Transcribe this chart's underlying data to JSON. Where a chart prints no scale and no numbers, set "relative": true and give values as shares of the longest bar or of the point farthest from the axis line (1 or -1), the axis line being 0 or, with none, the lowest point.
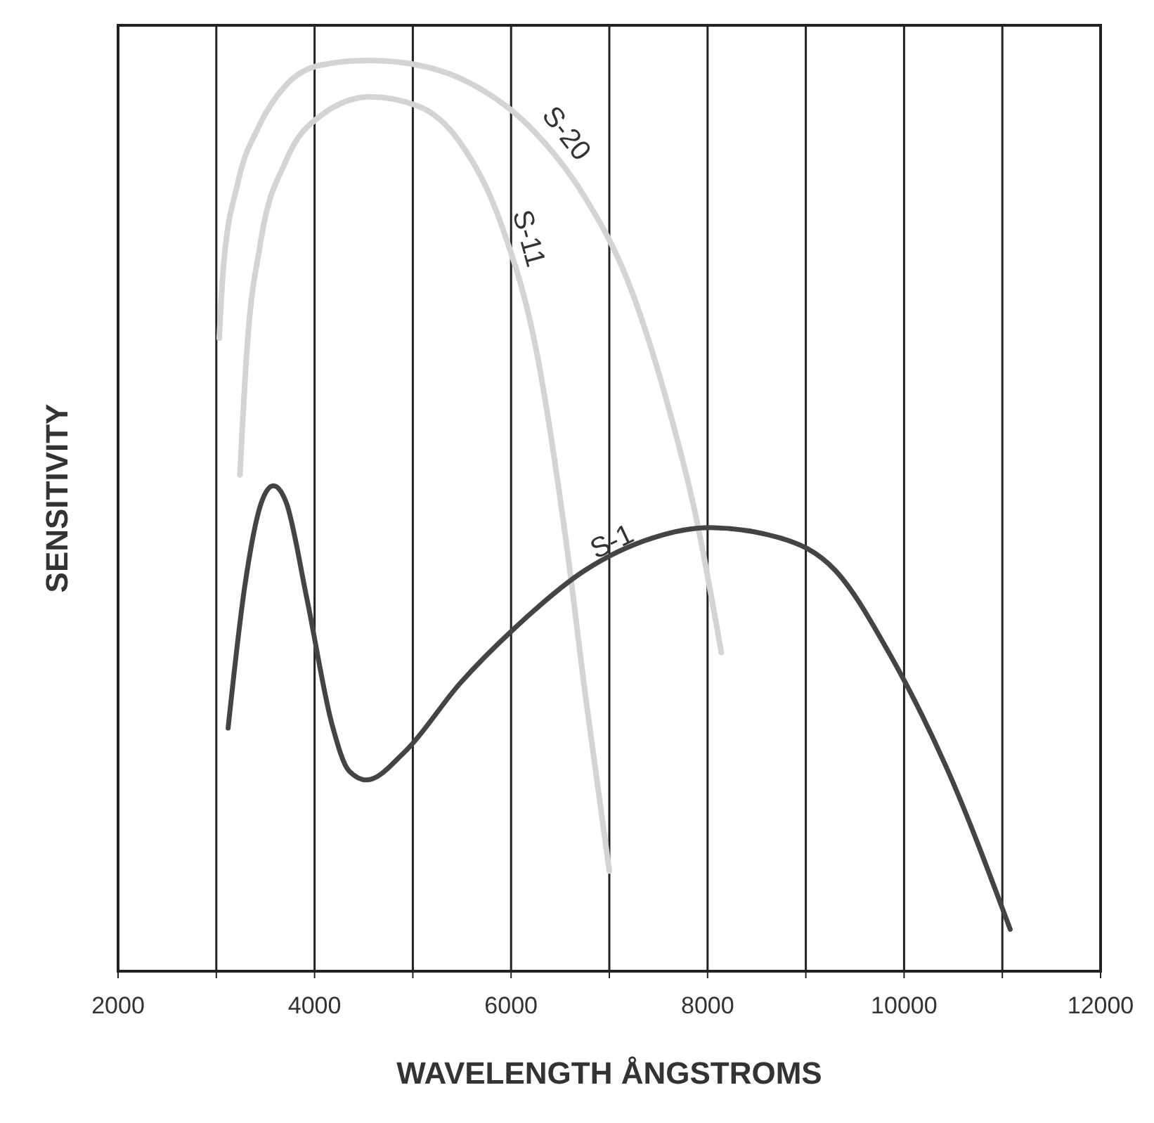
{
  "chart_data": {
    "type": "line",
    "xlabel": "WAVELENGTH ÅNGSTROMS",
    "ylabel": "SENSITIVITY",
    "relative": true,
    "xlim": [
      2000,
      12000
    ],
    "xticks": [
      2000,
      {
        "value": 3000,
        "label": null
      },
      4000,
      {
        "value": 5000,
        "label": null
      },
      6000,
      {
        "value": 7000,
        "label": null
      },
      8000,
      {
        "value": 9000,
        "label": null
      },
      10000,
      {
        "value": 11000,
        "label": null
      },
      12000
    ],
    "grid": "x",
    "legend": false,
    "line_style": "solid",
    "series": [
      {
        "name": "S-20",
        "color": "#d4d4d4",
        "x": [
          3030,
          3070,
          3220,
          3430,
          3710,
          4070,
          4560,
          5050,
          5620,
          6190,
          6750,
          7180,
          7600,
          7880,
          8140
        ],
        "values": [
          0.695,
          0.77,
          0.866,
          0.927,
          0.973,
          0.995,
          1.0,
          0.995,
          0.973,
          0.927,
          0.85,
          0.76,
          0.62,
          0.5,
          0.35
        ]
      },
      {
        "name": "S-11",
        "color": "#d4d4d4",
        "x": [
          3240,
          3310,
          3450,
          3710,
          4070,
          4560,
          5050,
          5480,
          5900,
          6260,
          6550,
          6760,
          7000
        ],
        "values": [
          0.545,
          0.68,
          0.8,
          0.89,
          0.94,
          0.96,
          0.95,
          0.91,
          0.82,
          0.68,
          0.48,
          0.3,
          0.11
        ]
      },
      {
        "name": "S-1",
        "color": "#444444",
        "x": [
          3120,
          3290,
          3460,
          3580,
          3710,
          3920,
          4180,
          4350,
          4530,
          4910,
          5480,
          6040,
          6750,
          7450,
          8020,
          8730,
          9300,
          9860,
          10430,
          11080
        ],
        "values": [
          0.267,
          0.423,
          0.515,
          0.533,
          0.515,
          0.41,
          0.27,
          0.22,
          0.21,
          0.24,
          0.316,
          0.377,
          0.44,
          0.476,
          0.487,
          0.476,
          0.44,
          0.347,
          0.224,
          0.046
        ]
      }
    ]
  }
}
